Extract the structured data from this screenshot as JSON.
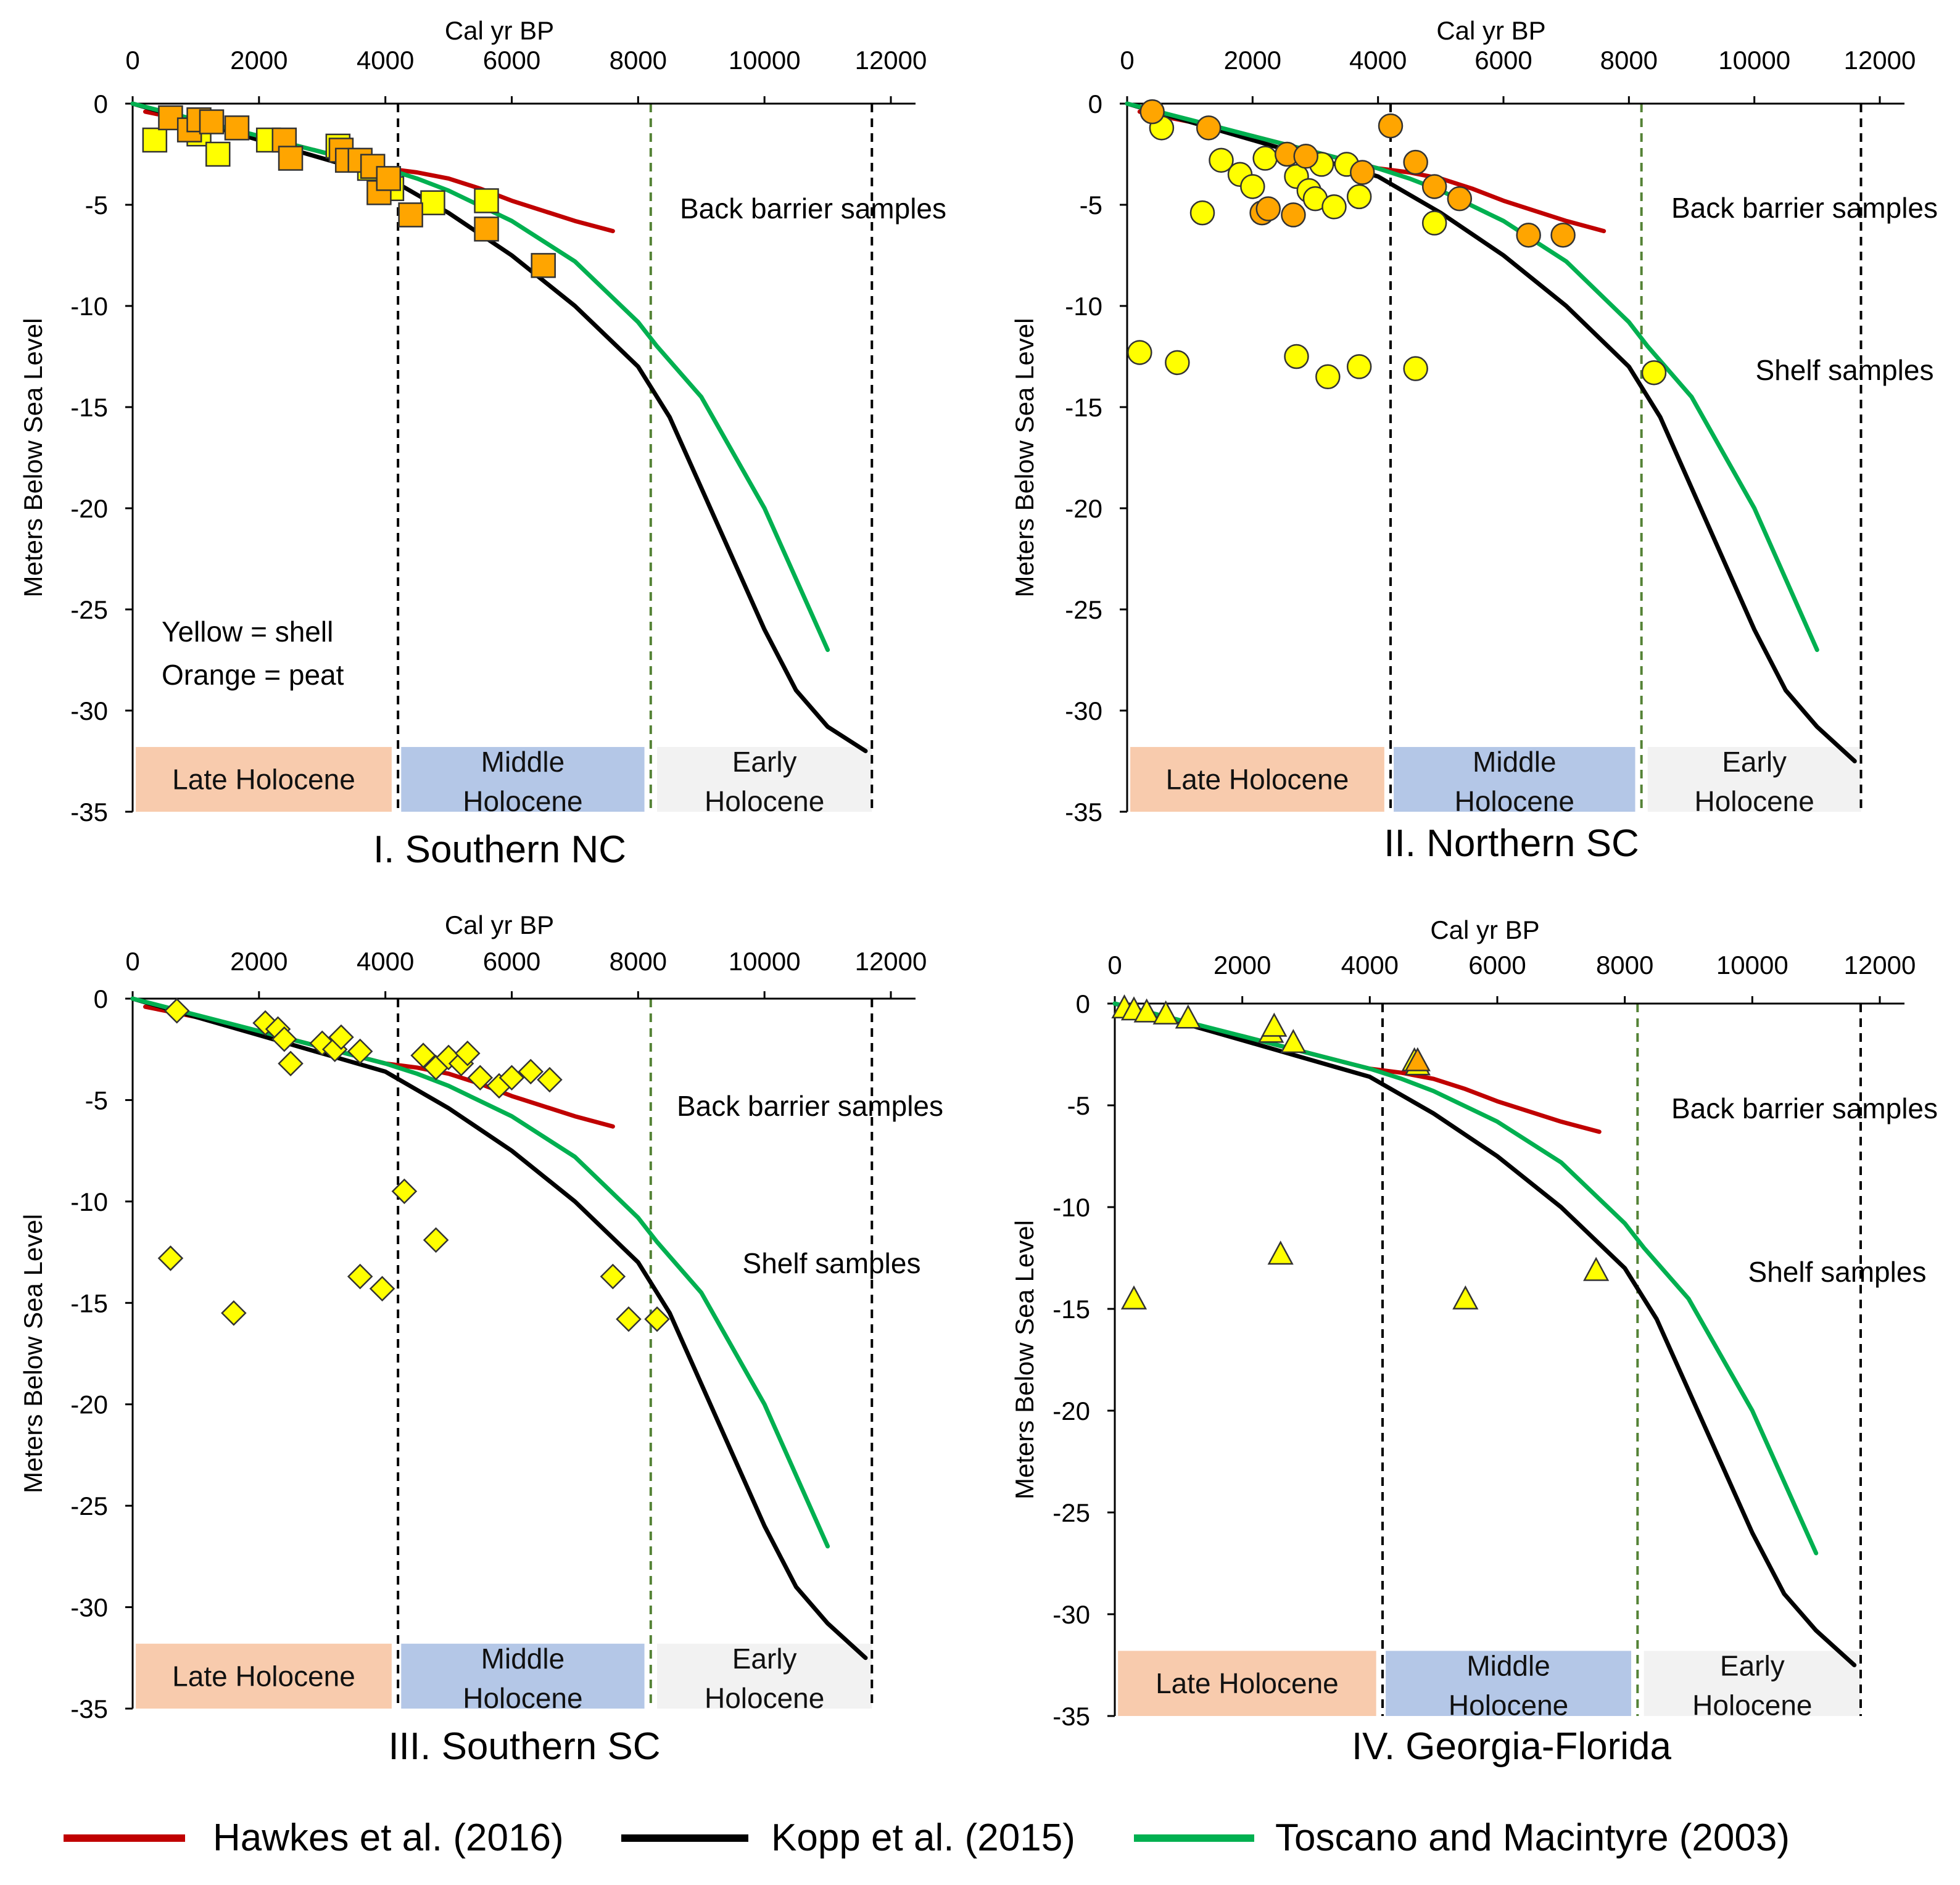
{
  "figure": {
    "x_axis_title": "Cal yr BP",
    "y_axis_title": "Meters Below Sea Level",
    "x_ticks": [
      0,
      2000,
      4000,
      6000,
      8000,
      10000,
      12000
    ],
    "y_ticks": [
      0,
      -5,
      -10,
      -15,
      -20,
      -25,
      -30,
      -35
    ],
    "xlim": [
      0,
      12000
    ],
    "ylim": [
      -35,
      0
    ],
    "period_dividers": [
      4200,
      8200,
      11700
    ],
    "period_boxes": [
      {
        "label": [
          "Late Holocene"
        ],
        "x0": 50,
        "x1": 4100,
        "color": "#f8cbad"
      },
      {
        "label": [
          "Middle",
          "Holocene"
        ],
        "x0": 4250,
        "x1": 8100,
        "color": "#b4c7e7"
      },
      {
        "label": [
          "Early",
          "Holocene"
        ],
        "x0": 8300,
        "x1": 11700,
        "color": "#f2f2f2"
      }
    ],
    "colors": {
      "shell": "#ffff00",
      "peat": "#ffa500",
      "hawkes": "#c00000",
      "kopp": "#000000",
      "toscano": "#00b050",
      "divider_late": "#000000",
      "divider_early": "#548235"
    },
    "legend": [
      {
        "label": "Hawkes et al. (2016)",
        "color": "#c00000"
      },
      {
        "label": "Kopp et al. (2015)",
        "color": "#000000"
      },
      {
        "label": "Toscano and Macintyre (2003)",
        "color": "#00b050"
      }
    ]
  },
  "chart_data": [
    {
      "type": "scatter",
      "title": "I. Southern NC",
      "marker": "square",
      "annotations": [
        "Back barrier samples"
      ],
      "note": [
        "Yellow = shell",
        "Orange = peat"
      ],
      "series": [
        {
          "name": "Hawkes et al. (2016)",
          "kind": "line",
          "x": [
            200,
            1000,
            2000,
            3000,
            4000,
            4500,
            5000,
            5500,
            6000,
            6500,
            7000,
            7600
          ],
          "y": [
            -0.4,
            -0.9,
            -1.6,
            -2.4,
            -3.2,
            -3.4,
            -3.7,
            -4.2,
            -4.8,
            -5.3,
            -5.8,
            -6.3
          ]
        },
        {
          "name": "Kopp et al. (2015)",
          "kind": "line",
          "x": [
            0,
            1000,
            2000,
            3000,
            4000,
            4500,
            5000,
            6000,
            7000,
            8000,
            8500,
            9000,
            9500,
            10000,
            10500,
            11000,
            11600
          ],
          "y": [
            0,
            -0.9,
            -1.8,
            -2.7,
            -3.6,
            -4.5,
            -5.4,
            -7.5,
            -10.0,
            -13.0,
            -15.5,
            -19.0,
            -22.5,
            -26.0,
            -29.0,
            -30.8,
            -32.0
          ]
        },
        {
          "name": "Toscano and Macintyre (2003)",
          "kind": "line",
          "x": [
            0,
            1000,
            2000,
            3000,
            4000,
            4500,
            5000,
            6000,
            7000,
            7500,
            8000,
            8300,
            9000,
            10000,
            11000
          ],
          "y": [
            0,
            -0.8,
            -1.6,
            -2.4,
            -3.2,
            -3.7,
            -4.3,
            -5.8,
            -7.8,
            -9.3,
            -10.8,
            -12.0,
            -14.5,
            -20.0,
            -27.0
          ]
        },
        {
          "name": "shell",
          "kind": "points",
          "x": [
            350,
            1050,
            1350,
            2150,
            3250,
            3750,
            4100,
            4750,
            5600
          ],
          "y": [
            -1.8,
            -1.5,
            -2.5,
            -1.8,
            -2.1,
            -3.2,
            -4.2,
            -4.9,
            -4.8
          ]
        },
        {
          "name": "peat",
          "kind": "points",
          "x": [
            600,
            900,
            1050,
            1250,
            1650,
            2400,
            2500,
            3300,
            3400,
            3600,
            3800,
            3900,
            4050,
            4400,
            5600,
            6500
          ],
          "y": [
            -0.7,
            -1.3,
            -0.8,
            -0.9,
            -1.2,
            -1.8,
            -2.7,
            -2.3,
            -2.8,
            -2.8,
            -3.1,
            -4.4,
            -3.7,
            -5.5,
            -6.2,
            -8.0
          ]
        }
      ]
    },
    {
      "type": "scatter",
      "title": "II. Northern SC",
      "marker": "circle",
      "annotations": [
        "Back barrier samples",
        "Shelf samples"
      ],
      "note": [],
      "series": [
        {
          "name": "Hawkes et al. (2016)",
          "kind": "line",
          "x": [
            200,
            1000,
            2000,
            3000,
            4000,
            4500,
            5000,
            5500,
            6000,
            6500,
            7000,
            7600
          ],
          "y": [
            -0.4,
            -0.9,
            -1.6,
            -2.4,
            -3.2,
            -3.4,
            -3.7,
            -4.2,
            -4.8,
            -5.3,
            -5.8,
            -6.3
          ]
        },
        {
          "name": "Kopp et al. (2015)",
          "kind": "line",
          "x": [
            0,
            1000,
            2000,
            3000,
            4000,
            4500,
            5000,
            6000,
            7000,
            8000,
            8500,
            9000,
            9500,
            10000,
            10500,
            11000,
            11600
          ],
          "y": [
            0,
            -0.9,
            -1.8,
            -2.7,
            -3.6,
            -4.5,
            -5.4,
            -7.5,
            -10.0,
            -13.0,
            -15.5,
            -19.0,
            -22.5,
            -26.0,
            -29.0,
            -30.8,
            -32.5
          ]
        },
        {
          "name": "Toscano and Macintyre (2003)",
          "kind": "line",
          "x": [
            0,
            1000,
            2000,
            3000,
            4000,
            4500,
            5000,
            6000,
            7000,
            7500,
            8000,
            8300,
            9000,
            10000,
            11000
          ],
          "y": [
            0,
            -0.8,
            -1.6,
            -2.4,
            -3.2,
            -3.7,
            -4.3,
            -5.8,
            -7.8,
            -9.3,
            -10.8,
            -12.0,
            -14.5,
            -20.0,
            -27.0
          ]
        },
        {
          "name": "shell",
          "kind": "points",
          "x": [
            550,
            1200,
            1500,
            1800,
            2000,
            2200,
            2700,
            2900,
            3000,
            3100,
            3300,
            3500,
            3700,
            4900,
            200,
            800,
            2700,
            3200,
            3700,
            4600,
            8400
          ],
          "y": [
            -1.2,
            -5.4,
            -2.8,
            -3.5,
            -4.1,
            -2.7,
            -3.6,
            -4.3,
            -4.7,
            -3.0,
            -5.1,
            -3.0,
            -4.6,
            -5.9,
            -12.3,
            -12.8,
            -12.5,
            -13.5,
            -13.0,
            -13.1,
            -13.3
          ]
        },
        {
          "name": "peat",
          "kind": "points",
          "x": [
            400,
            1300,
            2150,
            2250,
            2550,
            2650,
            2850,
            3750,
            4200,
            4600,
            4900,
            5300,
            6400,
            6950
          ],
          "y": [
            -0.4,
            -1.2,
            -5.4,
            -5.2,
            -2.5,
            -5.5,
            -2.6,
            -3.4,
            -1.1,
            -2.9,
            -4.1,
            -4.7,
            -6.5,
            -6.5
          ]
        }
      ]
    },
    {
      "type": "scatter",
      "title": "III. Southern SC",
      "marker": "diamond",
      "annotations": [
        "Back barrier samples",
        "Shelf samples"
      ],
      "note": [],
      "series": [
        {
          "name": "Hawkes et al. (2016)",
          "kind": "line",
          "x": [
            200,
            1000,
            2000,
            3000,
            4000,
            4500,
            5000,
            5500,
            6000,
            6500,
            7000,
            7600
          ],
          "y": [
            -0.4,
            -0.9,
            -1.6,
            -2.4,
            -3.2,
            -3.4,
            -3.7,
            -4.2,
            -4.8,
            -5.3,
            -5.8,
            -6.3
          ]
        },
        {
          "name": "Kopp et al. (2015)",
          "kind": "line",
          "x": [
            0,
            1000,
            2000,
            3000,
            4000,
            4500,
            5000,
            6000,
            7000,
            8000,
            8500,
            9000,
            9500,
            10000,
            10500,
            11000,
            11600
          ],
          "y": [
            0,
            -0.9,
            -1.8,
            -2.7,
            -3.6,
            -4.5,
            -5.4,
            -7.5,
            -10.0,
            -13.0,
            -15.5,
            -19.0,
            -22.5,
            -26.0,
            -29.0,
            -30.8,
            -32.5
          ]
        },
        {
          "name": "Toscano and Macintyre (2003)",
          "kind": "line",
          "x": [
            0,
            1000,
            2000,
            3000,
            4000,
            4500,
            5000,
            6000,
            7000,
            7500,
            8000,
            8300,
            9000,
            10000,
            11000
          ],
          "y": [
            0,
            -0.8,
            -1.6,
            -2.4,
            -3.2,
            -3.7,
            -4.3,
            -5.8,
            -7.8,
            -9.3,
            -10.8,
            -12.0,
            -14.5,
            -20.0,
            -27.0
          ]
        },
        {
          "name": "shell",
          "kind": "points",
          "x": [
            700,
            2100,
            2300,
            2400,
            2500,
            3000,
            3200,
            3300,
            3600,
            4600,
            4800,
            5000,
            5200,
            5300,
            5500,
            5800,
            6000,
            6300,
            6600,
            600,
            1600,
            3600,
            3950,
            4300,
            4800,
            7600,
            7850,
            8300
          ],
          "y": [
            -0.6,
            -1.2,
            -1.5,
            -2.0,
            -3.2,
            -2.2,
            -2.5,
            -1.9,
            -2.6,
            -2.8,
            -3.4,
            -2.9,
            -3.2,
            -2.7,
            -3.9,
            -4.3,
            -3.9,
            -3.6,
            -4.0,
            -12.8,
            -15.5,
            -13.7,
            -14.3,
            -9.5,
            -11.9,
            -13.7,
            -15.8,
            -15.8
          ]
        }
      ]
    },
    {
      "type": "scatter",
      "title": "IV. Georgia-Florida",
      "marker": "triangle",
      "annotations": [
        "Back barrier samples",
        "Shelf samples"
      ],
      "note": [],
      "series": [
        {
          "name": "Hawkes et al. (2016)",
          "kind": "line",
          "x": [
            200,
            1000,
            2000,
            3000,
            4000,
            4500,
            5000,
            5500,
            6000,
            6500,
            7000,
            7600
          ],
          "y": [
            -0.4,
            -0.9,
            -1.6,
            -2.4,
            -3.2,
            -3.4,
            -3.7,
            -4.2,
            -4.8,
            -5.3,
            -5.8,
            -6.3
          ]
        },
        {
          "name": "Kopp et al. (2015)",
          "kind": "line",
          "x": [
            0,
            1000,
            2000,
            3000,
            4000,
            4500,
            5000,
            6000,
            7000,
            8000,
            8500,
            9000,
            9500,
            10000,
            10500,
            11000,
            11600
          ],
          "y": [
            0,
            -0.9,
            -1.8,
            -2.7,
            -3.6,
            -4.5,
            -5.4,
            -7.5,
            -10.0,
            -13.0,
            -15.5,
            -19.0,
            -22.5,
            -26.0,
            -29.0,
            -30.8,
            -32.5
          ]
        },
        {
          "name": "Toscano and Macintyre (2003)",
          "kind": "line",
          "x": [
            0,
            1000,
            2000,
            3000,
            4000,
            4500,
            5000,
            6000,
            7000,
            7500,
            8000,
            8300,
            9000,
            10000,
            11000
          ],
          "y": [
            0,
            -0.8,
            -1.6,
            -2.4,
            -3.2,
            -3.7,
            -4.3,
            -5.8,
            -7.8,
            -9.3,
            -10.8,
            -12.0,
            -14.5,
            -20.0,
            -27.0
          ]
        },
        {
          "name": "shell",
          "kind": "points",
          "x": [
            150,
            300,
            500,
            800,
            1150,
            2450,
            2500,
            2800,
            4700,
            4750,
            300,
            2600,
            5500,
            7550
          ],
          "y": [
            -0.2,
            -0.3,
            -0.4,
            -0.5,
            -0.7,
            -1.4,
            -1.1,
            -1.9,
            -2.8,
            -3.0,
            -14.5,
            -12.3,
            -14.5,
            -13.1
          ]
        },
        {
          "name": "peat",
          "kind": "points",
          "x": [
            4750
          ],
          "y": [
            -2.8
          ]
        }
      ]
    }
  ]
}
